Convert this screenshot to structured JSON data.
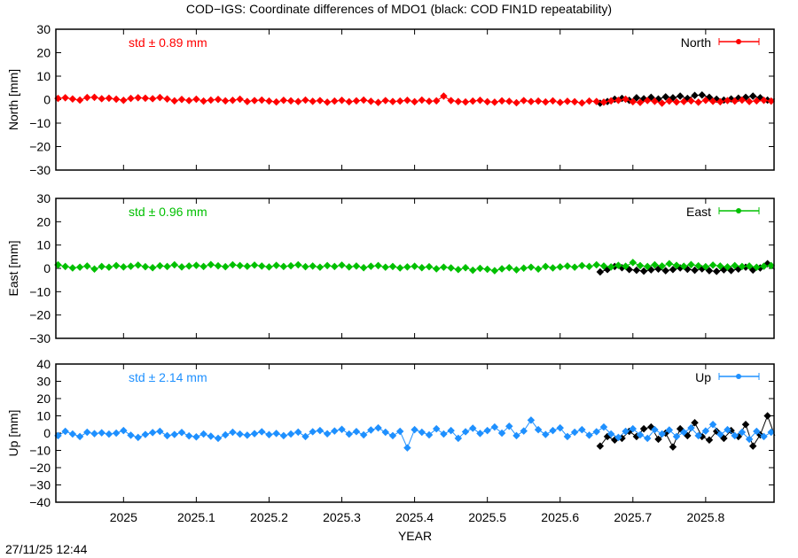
{
  "title": "COD−IGS: Coordinate differences of MDO1 (black: COD FIN1D repeatability)",
  "timestamp": "27/11/25 12:44",
  "chart_data": [
    {
      "type": "line",
      "title": "",
      "ylabel": "North [mm]",
      "xlabel": "",
      "ylim": [
        -30,
        30
      ],
      "xlim": [
        2024.907,
        2025.894
      ],
      "yticks": [
        30,
        20,
        10,
        0,
        -10,
        -20,
        -30
      ],
      "std_label": "std ± 0.89 mm",
      "legend": {
        "label": "North",
        "placement": "top-right"
      },
      "color": "#ff0000",
      "series_key": "north"
    },
    {
      "type": "line",
      "title": "",
      "ylabel": "East [mm]",
      "xlabel": "",
      "ylim": [
        -30,
        30
      ],
      "xlim": [
        2024.907,
        2025.894
      ],
      "yticks": [
        30,
        20,
        10,
        0,
        -10,
        -20,
        -30
      ],
      "std_label": "std ± 0.96 mm",
      "legend": {
        "label": "East",
        "placement": "top-right"
      },
      "color": "#00c000",
      "series_key": "east"
    },
    {
      "type": "line",
      "title": "",
      "ylabel": "Up [mm]",
      "xlabel": "YEAR",
      "ylim": [
        -40,
        40
      ],
      "xlim": [
        2024.907,
        2025.894
      ],
      "yticks": [
        40,
        30,
        20,
        10,
        0,
        -10,
        -20,
        -30,
        -40
      ],
      "xticks": [
        "2025",
        "2025.1",
        "2025.2",
        "2025.3",
        "2025.4",
        "2025.5",
        "2025.6",
        "2025.7",
        "2025.8"
      ],
      "std_label": "std ± 2.14 mm",
      "legend": {
        "label": "Up",
        "placement": "top-right"
      },
      "color": "#1e90ff",
      "series_key": "up"
    }
  ],
  "series": {
    "x_start": 2024.91,
    "x_step": 0.01,
    "black_x_start": 2025.655,
    "black_x_step": 0.01,
    "north": [
      0.5,
      0.8,
      0.3,
      -0.2,
      0.9,
      1.0,
      0.4,
      0.6,
      0.2,
      -0.3,
      0.5,
      0.8,
      0.6,
      0.4,
      0.9,
      0.3,
      -0.5,
      0.1,
      -0.4,
      0.2,
      -0.6,
      -0.2,
      0.1,
      -0.5,
      -0.3,
      0.2,
      -0.8,
      -0.4,
      -0.2,
      -0.6,
      -1.0,
      -0.3,
      -0.5,
      -0.8,
      -0.2,
      -0.7,
      -0.4,
      -1.1,
      -0.6,
      -0.3,
      -0.9,
      -0.5,
      -0.2,
      -0.7,
      -1.2,
      -0.4,
      -0.8,
      -0.6,
      -0.3,
      -0.9,
      -0.2,
      -0.7,
      -0.5,
      1.5,
      -0.4,
      -0.8,
      -1.0,
      -0.6,
      -0.3,
      -0.9,
      -1.1,
      -0.5,
      -0.7,
      -1.3,
      -0.4,
      -0.8,
      -0.6,
      -1.0,
      -0.5,
      -1.2,
      -0.7,
      -0.9,
      -1.4,
      -0.6,
      -0.8,
      -1.1,
      -0.5,
      -0.3,
      0.2,
      -0.9,
      -1.2,
      -0.4,
      -0.7,
      -1.5,
      -0.6,
      -1.0,
      -0.8,
      -0.5,
      -1.1,
      -0.3,
      -0.7,
      -0.9,
      -0.4,
      -0.6,
      -0.2,
      -0.8,
      -0.5,
      -0.3,
      -0.6
    ],
    "north_black": [
      -1.5,
      -0.8,
      0.2,
      0.5,
      -0.3,
      0.8,
      0.4,
      1.0,
      0.3,
      1.2,
      0.8,
      1.5,
      0.5,
      1.8,
      2.0,
      1.0,
      0.2,
      -0.2,
      0.3,
      0.6,
      1.0,
      1.5,
      0.8,
      -0.2,
      0.3
    ],
    "east": [
      1.5,
      0.8,
      0.2,
      0.5,
      1.0,
      -0.3,
      0.8,
      0.5,
      1.2,
      0.6,
      0.9,
      1.4,
      0.7,
      0.3,
      1.1,
      0.8,
      1.5,
      0.6,
      1.0,
      1.3,
      0.8,
      1.6,
      1.1,
      0.7,
      1.5,
      1.2,
      0.9,
      1.4,
      1.0,
      0.6,
      1.3,
      0.8,
      1.1,
      1.5,
      0.7,
      1.0,
      0.5,
      1.2,
      0.8,
      1.4,
      0.6,
      1.0,
      0.3,
      0.9,
      1.2,
      0.5,
      0.8,
      0.2,
      0.6,
      0.9,
      0.3,
      0.7,
      -0.2,
      0.5,
      0.2,
      -0.5,
      0.3,
      -0.8,
      0.0,
      -0.4,
      -1.0,
      -0.2,
      0.3,
      -0.6,
      0.1,
      0.5,
      -0.3,
      0.8,
      0.2,
      0.6,
      1.0,
      0.5,
      1.2,
      0.8,
      1.5,
      1.0,
      0.6,
      1.3,
      0.9,
      2.5,
      1.2,
      0.8,
      1.5,
      1.0,
      2.0,
      1.3,
      0.9,
      1.6,
      1.1,
      0.7,
      1.4,
      1.0,
      0.6,
      1.2,
      0.8,
      1.0,
      0.5,
      0.9,
      1.2
    ],
    "east_black": [
      -1.5,
      -0.5,
      0.8,
      0.3,
      -0.5,
      -0.8,
      -1.2,
      -0.6,
      -0.3,
      -1.0,
      -0.5,
      0.2,
      -0.4,
      -0.8,
      -0.2,
      -1.0,
      -1.3,
      -0.6,
      -0.9,
      -0.3,
      0.5,
      -0.7,
      0.2,
      2.0,
      -0.5
    ],
    "up": [
      -1.5,
      1.0,
      -0.5,
      -2.0,
      0.5,
      -0.3,
      0.2,
      -0.6,
      0.0,
      1.5,
      -1.2,
      -2.5,
      -0.8,
      0.3,
      1.0,
      -1.5,
      -0.8,
      0.4,
      -1.6,
      -2.2,
      -0.5,
      -1.8,
      -3.0,
      -1.0,
      0.5,
      -0.6,
      -1.2,
      -0.3,
      0.8,
      -0.9,
      -0.2,
      -1.5,
      -0.5,
      0.6,
      -2.0,
      0.8,
      1.5,
      -0.4,
      1.2,
      2.2,
      -0.6,
      0.9,
      -1.0,
      1.8,
      3.0,
      0.5,
      -1.5,
      1.0,
      -8.5,
      2.0,
      0.5,
      -1.0,
      2.5,
      -0.5,
      1.5,
      -3.0,
      0.8,
      2.8,
      -0.2,
      1.5,
      3.5,
      0.0,
      4.0,
      -1.5,
      1.2,
      7.5,
      2.0,
      -0.8,
      1.5,
      3.0,
      -2.0,
      0.5,
      2.0,
      -1.2,
      0.8,
      3.5,
      -0.5,
      -2.5,
      1.0,
      2.5,
      -1.0,
      -3.0,
      2.0,
      -0.5,
      1.8,
      -2.0,
      0.5,
      3.0,
      -1.5,
      1.2,
      5.0,
      -0.8,
      2.0,
      -1.5,
      0.5,
      -3.5,
      1.0,
      -2.0,
      0.5
    ],
    "up_black": [
      -7.5,
      -2.0,
      -4.0,
      -3.0,
      1.0,
      -2.0,
      2.5,
      3.5,
      -3.5,
      0.0,
      -8.0,
      2.5,
      -1.5,
      6.0,
      -2.0,
      -4.0,
      1.0,
      -3.0,
      1.5,
      -2.0,
      5.0,
      -7.5,
      -1.0,
      10.0,
      -1.5
    ]
  }
}
